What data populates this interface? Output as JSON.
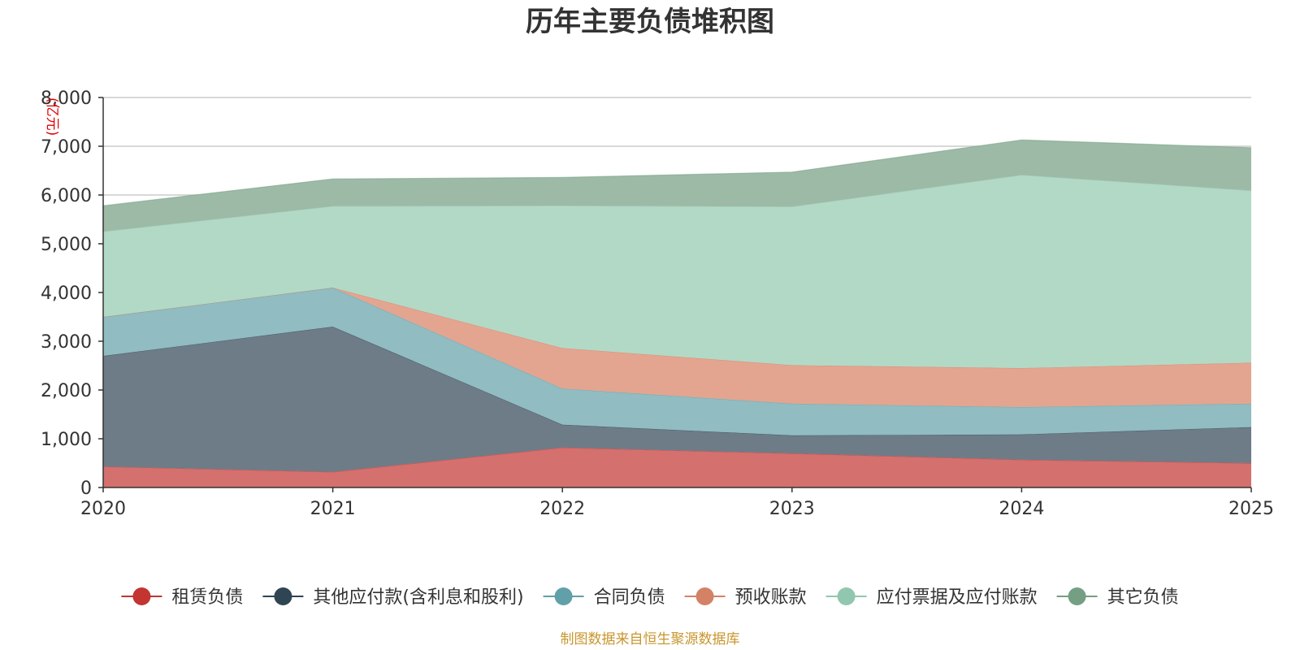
{
  "chart_data": {
    "type": "area",
    "stacked": true,
    "title": "历年主要负债堆积图",
    "unit": "(亿元)",
    "xlabel": "",
    "ylabel": "(亿元)",
    "categories": [
      "2020",
      "2021",
      "2022",
      "2023",
      "2024",
      "2025"
    ],
    "ylim": [
      0,
      8000
    ],
    "yticks": [
      0,
      1000,
      2000,
      3000,
      4000,
      5000,
      6000,
      7000,
      8000
    ],
    "ytick_labels": [
      "0",
      "1,000",
      "2,000",
      "3,000",
      "4,000",
      "5,000",
      "6,000",
      "7,000",
      "8,000"
    ],
    "grid": true,
    "legend_position": "bottom",
    "series": [
      {
        "name": "租赁负债",
        "color": "#c23531",
        "fill": "#d4706e",
        "values": [
          430,
          320,
          820,
          700,
          570,
          500
        ]
      },
      {
        "name": "其他应付款(含利息和股利)",
        "color": "#2f4554",
        "fill": "#6e7c87",
        "values": [
          2270,
          2980,
          470,
          370,
          520,
          740
        ]
      },
      {
        "name": "合同负债",
        "color": "#61a0a8",
        "fill": "#90bcc2",
        "values": [
          800,
          800,
          740,
          650,
          560,
          480
        ]
      },
      {
        "name": "预收账款",
        "color": "#d48265",
        "fill": "#e3a590",
        "values": [
          0,
          0,
          830,
          790,
          800,
          840
        ]
      },
      {
        "name": "应付票据及应付账款",
        "color": "#91c7ae",
        "fill": "#b2d9c6",
        "values": [
          1750,
          1670,
          2920,
          3250,
          3960,
          3530
        ]
      },
      {
        "name": "其它负债",
        "color": "#749f83",
        "fill": "#9dbaa7",
        "values": [
          530,
          560,
          580,
          710,
          720,
          880
        ]
      }
    ]
  },
  "source": "制图数据来自恒生聚源数据库"
}
